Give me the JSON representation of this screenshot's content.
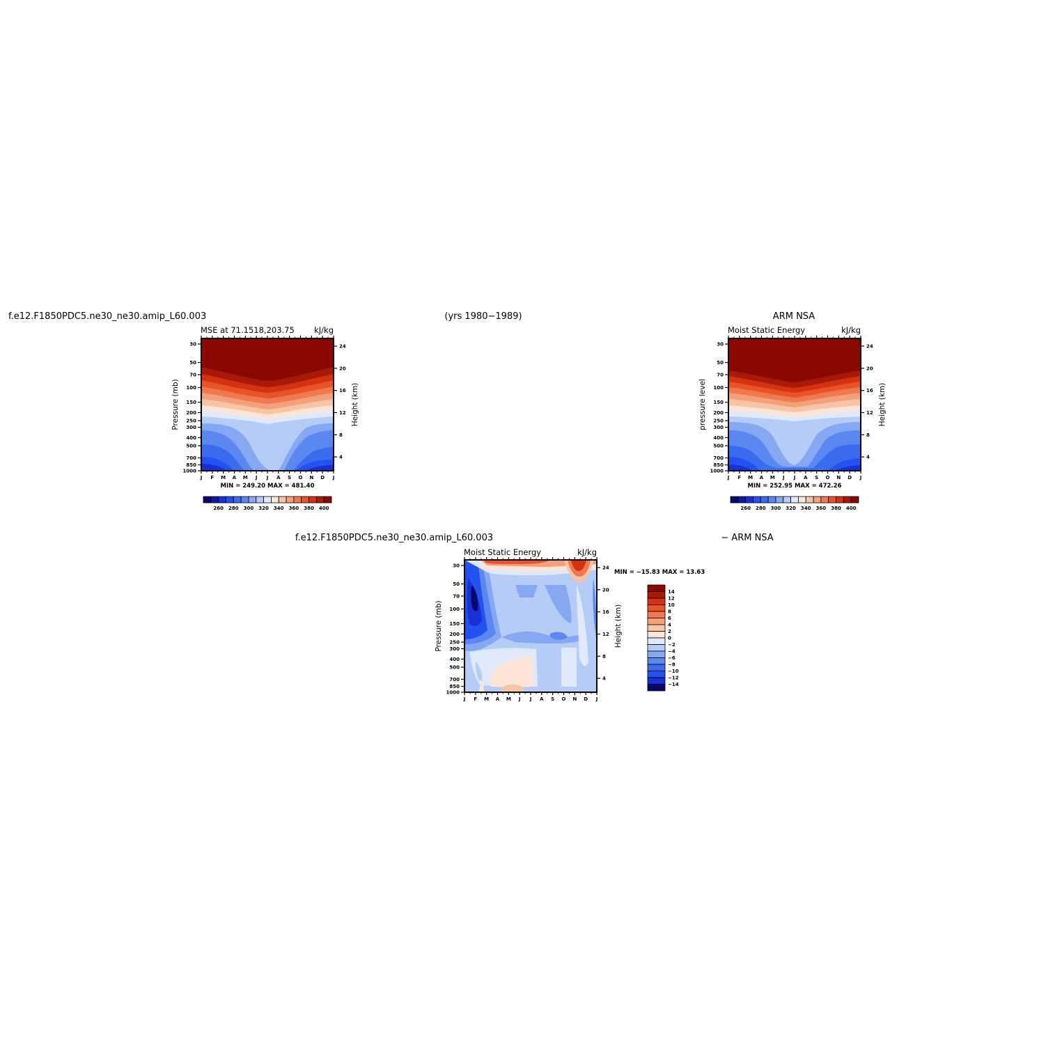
{
  "page": {
    "left_case_title": "f.e12.F1850PDC5.ne30_ne30.amip_L60.003",
    "years_label": "(yrs 1980−1989)",
    "right_title": "ARM NSA",
    "diff_title_model": "f.e12.F1850PDC5.ne30_ne30.amip_L60.003",
    "diff_title_obs": "− ARM NSA"
  },
  "axes": {
    "pressure_ticks": [
      "30",
      "50",
      "70",
      "100",
      "150",
      "200",
      "250",
      "300",
      "400",
      "500",
      "700",
      "850",
      "1000"
    ],
    "height_ticks": [
      "24",
      "20",
      "16",
      "12",
      "8",
      "4"
    ],
    "month_ticks": [
      "J",
      "F",
      "M",
      "A",
      "M",
      "J",
      "J",
      "A",
      "S",
      "O",
      "N",
      "D",
      "J"
    ]
  },
  "chart_data": [
    {
      "type": "heatmap",
      "panel": "model",
      "subtitle": "MSE at 71.1518,203.75",
      "units": "kJ/kg",
      "ylabel": "Pressure (mb)",
      "ylabel_right": "Height (km)",
      "stats": "MIN = 249.20 MAX = 481.40",
      "x": [
        "J",
        "F",
        "M",
        "A",
        "M",
        "J",
        "J",
        "A",
        "S",
        "O",
        "N",
        "D",
        "J"
      ],
      "contour_levels": [
        250,
        260,
        270,
        280,
        290,
        300,
        310,
        320,
        330,
        340,
        350,
        360,
        370,
        380,
        390,
        400,
        410
      ],
      "colorbar_labels": [
        "260",
        "280",
        "300",
        "320",
        "340",
        "360",
        "380",
        "400"
      ],
      "min": 249.2,
      "max": 481.4
    },
    {
      "type": "heatmap",
      "panel": "observation",
      "subtitle": "Moist Static Energy",
      "units": "kJ/kg",
      "ylabel": "pressure level",
      "ylabel_right": "Height (km)",
      "stats": "MIN = 252.95 MAX = 472.26",
      "x": [
        "J",
        "F",
        "M",
        "A",
        "M",
        "J",
        "J",
        "A",
        "S",
        "O",
        "N",
        "D",
        "J"
      ],
      "contour_levels": [
        250,
        260,
        270,
        280,
        290,
        300,
        310,
        320,
        330,
        340,
        350,
        360,
        370,
        380,
        390,
        400,
        410
      ],
      "colorbar_labels": [
        "260",
        "280",
        "300",
        "320",
        "340",
        "360",
        "380",
        "400"
      ],
      "min": 252.95,
      "max": 472.26
    },
    {
      "type": "heatmap",
      "panel": "difference",
      "subtitle": "Moist Static Energy",
      "units": "kJ/kg",
      "ylabel": "Pressure (mb)",
      "ylabel_right": "Height (km)",
      "stats": "MIN = −15.83 MAX =  13.63",
      "x": [
        "J",
        "F",
        "M",
        "A",
        "M",
        "J",
        "J",
        "A",
        "S",
        "O",
        "N",
        "D",
        "J"
      ],
      "contour_levels": [
        -14,
        -12,
        -10,
        -8,
        -6,
        -4,
        -2,
        0,
        2,
        4,
        6,
        8,
        10,
        12,
        14
      ],
      "colorbar_labels": [
        "14",
        "12",
        "10",
        "8",
        "6",
        "4",
        "2",
        "0",
        "−2",
        "−4",
        "−6",
        "−8",
        "−10",
        "−12",
        "−14"
      ],
      "min": -15.83,
      "max": 13.63
    }
  ],
  "colors": {
    "seq16": [
      "#08086e",
      "#0e1aa4",
      "#1830d6",
      "#2452f0",
      "#3b6cf0",
      "#5a88f0",
      "#86a8f2",
      "#b4ccf6",
      "#dfe9fb",
      "#fde4d6",
      "#f8c4a6",
      "#f4a07a",
      "#f07a50",
      "#e85428",
      "#d43210",
      "#a81a08",
      "#8a0800"
    ],
    "diff15": [
      "#8a0800",
      "#a81a08",
      "#d43210",
      "#e85428",
      "#f07a50",
      "#f4a07a",
      "#f8c4a6",
      "#fde4d6",
      "#dfe9fb",
      "#b4ccf6",
      "#86a8f2",
      "#5a88f0",
      "#3b6cf0",
      "#2452f0",
      "#1830d6",
      "#08086e"
    ]
  }
}
